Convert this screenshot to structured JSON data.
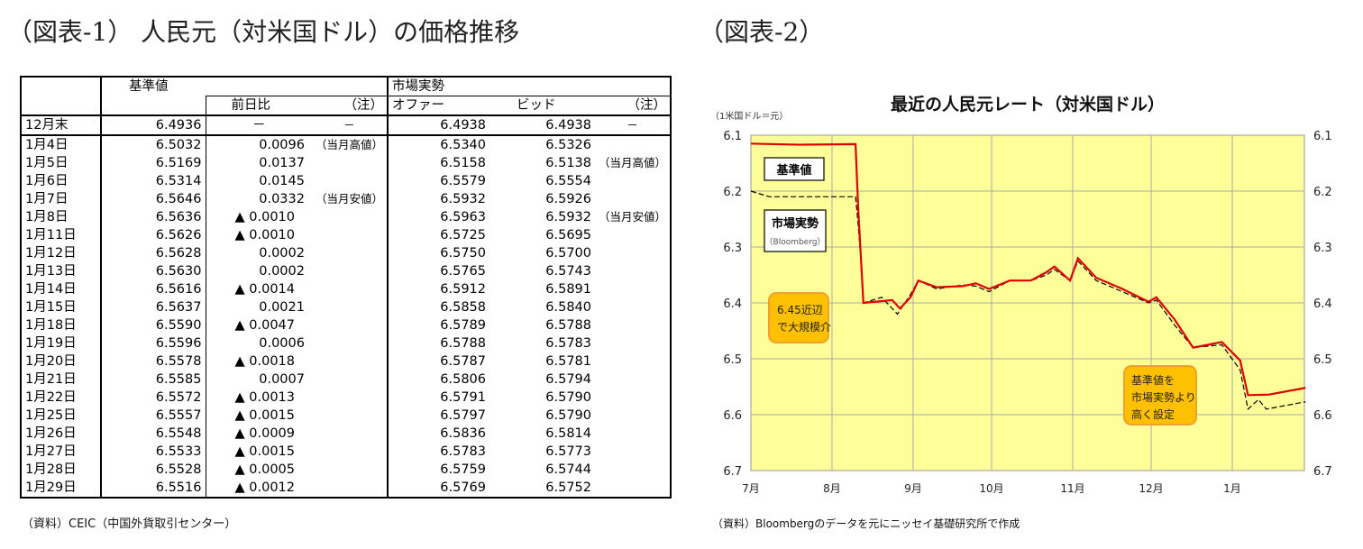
{
  "fig1_title": "（図表-1） 人民元（対米国ドル）の価格推移",
  "fig2_title": "（図表-2）",
  "table": {
    "headers": {
      "base": "基準値",
      "market": "市場実勢",
      "change": "前日比",
      "note": "（注）",
      "offer": "オファー",
      "bid": "ビッド",
      "note2": "（注）"
    },
    "rows": [
      [
        "12月末",
        "6.4936",
        "－",
        "－",
        "6.4938",
        "6.4938",
        "－"
      ],
      [
        "1月4日",
        "6.5032",
        "0.0096",
        "（当月高値）",
        "6.5340",
        "6.5326",
        ""
      ],
      [
        "1月5日",
        "6.5169",
        "0.0137",
        "",
        "6.5158",
        "6.5138",
        "（当月高値）"
      ],
      [
        "1月6日",
        "6.5314",
        "0.0145",
        "",
        "6.5579",
        "6.5554",
        ""
      ],
      [
        "1月7日",
        "6.5646",
        "0.0332",
        "（当月安値）",
        "6.5932",
        "6.5926",
        ""
      ],
      [
        "1月8日",
        "6.5636",
        "▲ 0.0010",
        "",
        "6.5963",
        "6.5932",
        "（当月安値）"
      ],
      [
        "1月11日",
        "6.5626",
        "▲ 0.0010",
        "",
        "6.5725",
        "6.5695",
        ""
      ],
      [
        "1月12日",
        "6.5628",
        "0.0002",
        "",
        "6.5750",
        "6.5700",
        ""
      ],
      [
        "1月13日",
        "6.5630",
        "0.0002",
        "",
        "6.5765",
        "6.5743",
        ""
      ],
      [
        "1月14日",
        "6.5616",
        "▲ 0.0014",
        "",
        "6.5912",
        "6.5891",
        ""
      ],
      [
        "1月15日",
        "6.5637",
        "0.0021",
        "",
        "6.5858",
        "6.5840",
        ""
      ],
      [
        "1月18日",
        "6.5590",
        "▲ 0.0047",
        "",
        "6.5789",
        "6.5788",
        ""
      ],
      [
        "1月19日",
        "6.5596",
        "0.0006",
        "",
        "6.5788",
        "6.5783",
        ""
      ],
      [
        "1月20日",
        "6.5578",
        "▲ 0.0018",
        "",
        "6.5787",
        "6.5781",
        ""
      ],
      [
        "1月21日",
        "6.5585",
        "0.0007",
        "",
        "6.5806",
        "6.5794",
        ""
      ],
      [
        "1月22日",
        "6.5572",
        "▲ 0.0013",
        "",
        "6.5791",
        "6.5790",
        ""
      ],
      [
        "1月25日",
        "6.5557",
        "▲ 0.0015",
        "",
        "6.5797",
        "6.5790",
        ""
      ],
      [
        "1月26日",
        "6.5548",
        "▲ 0.0009",
        "",
        "6.5836",
        "6.5814",
        ""
      ],
      [
        "1月27日",
        "6.5533",
        "▲ 0.0015",
        "",
        "6.5783",
        "6.5773",
        ""
      ],
      [
        "1月28日",
        "6.5528",
        "▲ 0.0005",
        "",
        "6.5759",
        "6.5744",
        ""
      ],
      [
        "1月29日",
        "6.5516",
        "▲ 0.0012",
        "",
        "6.5769",
        "6.5752",
        ""
      ]
    ],
    "source": "（資料）CEIC（中国外貨取引センター）"
  },
  "chart_data": {
    "type": "line",
    "title": "最近の人民元レート（対米国ドル）",
    "unit_label": "（1米国ドル＝元）",
    "yticks": [
      "6.1",
      "6.2",
      "6.3",
      "6.4",
      "6.5",
      "6.6",
      "6.7"
    ],
    "ylim": [
      6.1,
      6.7
    ],
    "y_reversed": true,
    "xticks": [
      "7月",
      "8月",
      "9月",
      "10月",
      "11月",
      "12月",
      "1月"
    ],
    "grid": true,
    "background_color": "#ffff99",
    "series": [
      {
        "name": "基準値",
        "color": "#e00000",
        "points": [
          [
            "07-01",
            6.115
          ],
          [
            "07-20",
            6.117
          ],
          [
            "08-10",
            6.116
          ],
          [
            "08-11",
            6.23
          ],
          [
            "08-13",
            6.4
          ],
          [
            "08-24",
            6.395
          ],
          [
            "08-27",
            6.41
          ],
          [
            "08-31",
            6.39
          ],
          [
            "09-03",
            6.36
          ],
          [
            "09-10",
            6.372
          ],
          [
            "09-20",
            6.37
          ],
          [
            "09-25",
            6.365
          ],
          [
            "09-30",
            6.375
          ],
          [
            "10-08",
            6.36
          ],
          [
            "10-16",
            6.36
          ],
          [
            "10-22",
            6.345
          ],
          [
            "10-25",
            6.335
          ],
          [
            "10-31",
            6.36
          ],
          [
            "11-03",
            6.32
          ],
          [
            "11-10",
            6.355
          ],
          [
            "11-20",
            6.375
          ],
          [
            "11-30",
            6.398
          ],
          [
            "12-03",
            6.39
          ],
          [
            "12-10",
            6.43
          ],
          [
            "12-17",
            6.48
          ],
          [
            "12-28",
            6.47
          ],
          [
            "01-04",
            6.503
          ],
          [
            "01-07",
            6.565
          ],
          [
            "01-15",
            6.564
          ],
          [
            "01-29",
            6.552
          ]
        ]
      },
      {
        "name": "市場実勢",
        "sub": "（Bloomberg）",
        "color": "#000000",
        "points": [
          [
            "07-01",
            6.2
          ],
          [
            "07-08",
            6.21
          ],
          [
            "08-10",
            6.21
          ],
          [
            "08-11",
            6.26
          ],
          [
            "08-12",
            6.32
          ],
          [
            "08-13",
            6.4
          ],
          [
            "08-20",
            6.39
          ],
          [
            "08-26",
            6.42
          ],
          [
            "08-31",
            6.385
          ],
          [
            "09-03",
            6.36
          ],
          [
            "09-10",
            6.375
          ],
          [
            "09-20",
            6.368
          ],
          [
            "09-25",
            6.37
          ],
          [
            "09-30",
            6.38
          ],
          [
            "10-08",
            6.36
          ],
          [
            "10-16",
            6.36
          ],
          [
            "10-22",
            6.35
          ],
          [
            "10-25",
            6.34
          ],
          [
            "10-31",
            6.36
          ],
          [
            "11-03",
            6.325
          ],
          [
            "11-10",
            6.36
          ],
          [
            "11-20",
            6.38
          ],
          [
            "11-30",
            6.4
          ],
          [
            "12-03",
            6.395
          ],
          [
            "12-10",
            6.44
          ],
          [
            "12-17",
            6.48
          ],
          [
            "12-28",
            6.475
          ],
          [
            "01-04",
            6.52
          ],
          [
            "01-07",
            6.59
          ],
          [
            "01-11",
            6.573
          ],
          [
            "01-14",
            6.59
          ],
          [
            "01-29",
            6.577
          ]
        ]
      }
    ],
    "annotations": [
      "6.45近辺で大規模介",
      "基準値を市場実勢より高く設定"
    ],
    "source": "（資料）Bloombergのデータを元にニッセイ基礎研究所で作成"
  }
}
